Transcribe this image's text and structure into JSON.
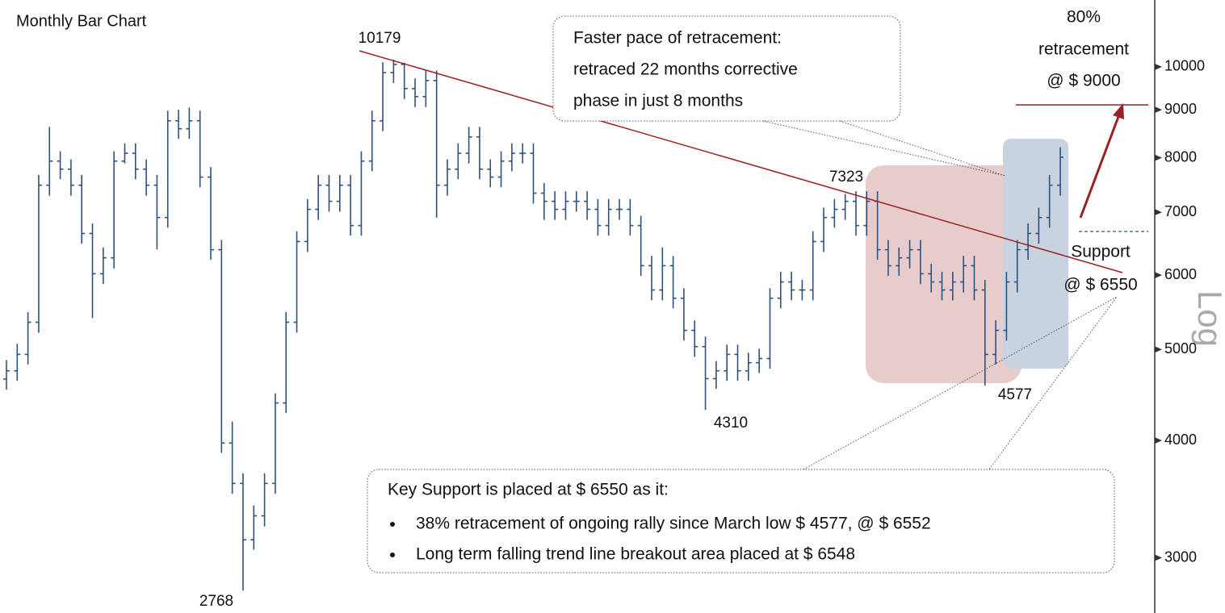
{
  "chart_data": {
    "type": "ohlc",
    "title": "Monthly Bar Chart",
    "ylabel": "Log",
    "color": "#2b5382",
    "log_scale": true,
    "grid": false,
    "ylim": [
      2620,
      11780
    ],
    "yticks": [
      3000,
      4000,
      5000,
      6000,
      7000,
      8000,
      9000,
      10000
    ],
    "open": [
      4650,
      4745,
      4940,
      5345,
      7480,
      7935,
      7780,
      7480,
      6645,
      6020,
      6260,
      7935,
      8090,
      7780,
      7480,
      6910,
      8760,
      8590,
      8760,
      7630,
      6385,
      3975,
      3600,
      3135,
      3325,
      3600,
      4385,
      5345,
      6515,
      7050,
      7480,
      7190,
      7480,
      6775,
      7935,
      8760,
      9860,
      10060,
      9480,
      9295,
      9670,
      7480,
      7780,
      8090,
      8420,
      7780,
      7630,
      7935,
      8090,
      8090,
      7335,
      7190,
      7050,
      7190,
      7190,
      7050,
      6775,
      7050,
      7050,
      6775,
      6140,
      5785,
      6140,
      5670,
      5240,
      5035,
      4655,
      4745,
      4940,
      4745,
      4840,
      4890,
      5670,
      5900,
      5785,
      5785,
      6515,
      6910,
      7050,
      7190,
      6775,
      7190,
      6385,
      6140,
      6260,
      6385,
      6020,
      5900,
      5785,
      5900,
      6140,
      5785,
      4940,
      5240,
      5900,
      6385,
      6645,
      6910,
      7480
    ],
    "high": [
      4870,
      5070,
      5480,
      7670,
      8630,
      8130,
      7970,
      7670,
      6810,
      6420,
      8130,
      8290,
      8290,
      7970,
      7670,
      8980,
      9000,
      9050,
      8980,
      7820,
      6540,
      4190,
      3690,
      3410,
      3690,
      4490,
      5480,
      6680,
      7230,
      7670,
      7670,
      7670,
      7670,
      8130,
      8980,
      10110,
      10179,
      10100,
      9720,
      9910,
      9910,
      7970,
      8290,
      8630,
      8630,
      7970,
      8130,
      8290,
      8290,
      8290,
      7520,
      7370,
      7370,
      7370,
      7370,
      7230,
      7230,
      7230,
      7230,
      6940,
      6290,
      6420,
      6290,
      5810,
      5370,
      5160,
      4860,
      5060,
      5060,
      4960,
      5010,
      5810,
      6050,
      6050,
      5930,
      6680,
      7080,
      7230,
      7323,
      7370,
      7370,
      7370,
      6540,
      6420,
      6540,
      6540,
      6170,
      6050,
      6050,
      6290,
      6290,
      5930,
      5370,
      6050,
      6540,
      6810,
      7080,
      7670,
      8210
    ],
    "low": [
      4530,
      4630,
      4820,
      5210,
      7290,
      7590,
      7290,
      6480,
      5400,
      5870,
      6100,
      7890,
      7590,
      7290,
      6390,
      6740,
      8380,
      8380,
      7440,
      6230,
      3880,
      3510,
      2768,
      3060,
      3240,
      3510,
      4280,
      5210,
      6350,
      6870,
      7010,
      7010,
      6610,
      6610,
      7740,
      8540,
      9610,
      9240,
      9060,
      9060,
      6910,
      7290,
      7590,
      7890,
      7590,
      7440,
      7440,
      7740,
      7890,
      7150,
      6870,
      6870,
      6870,
      7010,
      6870,
      6610,
      6610,
      6870,
      6610,
      5990,
      5640,
      5640,
      5530,
      5110,
      4910,
      4310,
      4540,
      4630,
      4630,
      4630,
      4720,
      4770,
      5530,
      5640,
      5640,
      5640,
      6350,
      6740,
      6870,
      6610,
      6610,
      6230,
      5990,
      5990,
      6100,
      5870,
      5750,
      5640,
      5640,
      5750,
      5640,
      4577,
      4820,
      5110,
      5750,
      6230,
      6480,
      6740,
      7290
    ],
    "close": [
      4745,
      4940,
      5345,
      7480,
      7935,
      7780,
      7480,
      6645,
      6020,
      6260,
      7935,
      8090,
      7780,
      7480,
      6910,
      8760,
      8590,
      8760,
      7630,
      6385,
      3975,
      3600,
      3135,
      3325,
      3600,
      4385,
      5345,
      6515,
      7050,
      7480,
      7190,
      7480,
      6775,
      7935,
      8760,
      9860,
      10060,
      9480,
      9295,
      9670,
      7480,
      7780,
      8090,
      8420,
      7780,
      7630,
      7935,
      8090,
      8090,
      7335,
      7190,
      7050,
      7190,
      7190,
      7050,
      6775,
      7050,
      7050,
      6775,
      6140,
      5785,
      6140,
      5670,
      5240,
      5035,
      4655,
      4745,
      4940,
      4745,
      4840,
      4890,
      5670,
      5900,
      5785,
      5785,
      6515,
      6910,
      7050,
      7190,
      6775,
      7190,
      6385,
      6140,
      6260,
      6385,
      6020,
      5900,
      5785,
      5900,
      6140,
      5785,
      4940,
      5240,
      5900,
      6385,
      6645,
      6910,
      7480,
      8010
    ],
    "price_labels": [
      "10179",
      "2768",
      "4310",
      "7323",
      "4577"
    ],
    "retracement_note": [
      "80%",
      "retracement",
      "@ $ 9000"
    ],
    "support_note": [
      "Support",
      "@ $ 6550"
    ],
    "callout_top": [
      "Faster pace of retracement:",
      "retraced 22 months corrective",
      "phase in just 8 months"
    ],
    "callout_bottom": {
      "heading": "Key Support is placed at $ 6550 as it:",
      "bullets": [
        "38% retracement of ongoing rally since March low $ 4577, @ $ 6552",
        "Long term falling trend line breakout area placed at $ 6548"
      ]
    }
  }
}
